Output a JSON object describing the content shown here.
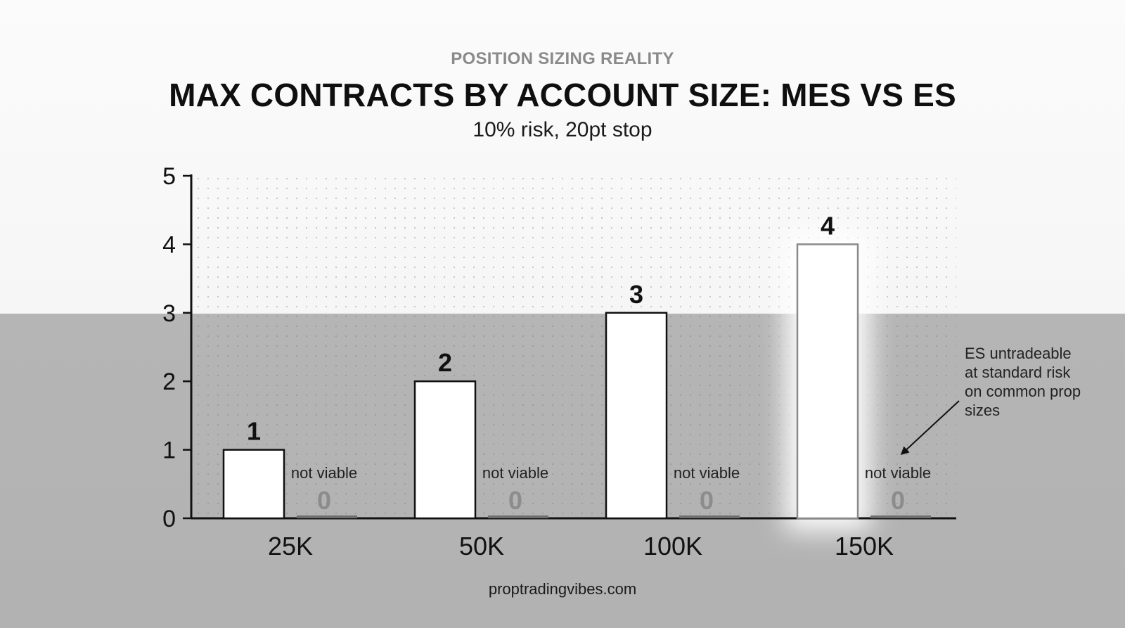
{
  "header": {
    "kicker": "POSITION SIZING REALITY",
    "title": "MAX CONTRACTS BY ACCOUNT SIZE: MES VS ES",
    "subtitle": "10% risk, 20pt stop"
  },
  "footer": {
    "source": "proptradingvibes.com"
  },
  "colors": {
    "background_top": "#f7f7f7",
    "background_bottom": "#b4b4b4",
    "mes_bar_fill": "#ffffff",
    "mes_bar_stroke": "#111111",
    "es_bar_fill": "#6e6e6e",
    "es_label": "#8c8c8c"
  },
  "chart_data": {
    "type": "bar",
    "title": "MAX CONTRACTS BY ACCOUNT SIZE: MES VS ES",
    "subtitle": "10% risk, 20pt stop",
    "categories": [
      "25K",
      "50K",
      "100K",
      "150K"
    ],
    "series": [
      {
        "name": "MES",
        "values": [
          1,
          2,
          3,
          4
        ],
        "labels": [
          "1",
          "2",
          "3",
          "4"
        ]
      },
      {
        "name": "ES",
        "values": [
          0,
          0,
          0,
          0
        ],
        "labels": [
          "0",
          "0",
          "0",
          "0"
        ],
        "notes": [
          "not viable",
          "not viable",
          "not viable",
          "not viable"
        ]
      }
    ],
    "y_ticks": [
      "0",
      "1",
      "2",
      "3",
      "4",
      "5"
    ],
    "ylim": [
      0,
      5
    ],
    "xlabel": "",
    "ylabel": "",
    "grid": "dotted",
    "highlight_category": "150K",
    "annotation": {
      "lines": [
        "ES untradeable",
        "at standard risk",
        "on common prop",
        "sizes"
      ],
      "points_to": "150K ES"
    }
  }
}
